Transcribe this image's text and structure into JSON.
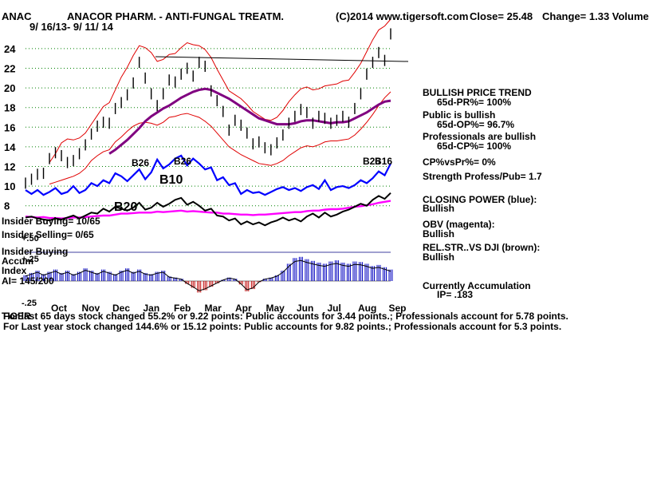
{
  "header": {
    "ticker": "ANAC",
    "company": "ANACOR PHARM. - ANTI-FUNGAL TREATM.",
    "copyright": "(C)2014 www.tigersoft.com",
    "close": "Close= 25.48",
    "change": "Change= 1.33 Volume",
    "date_range": "9/ 16/13- 9/ 11/ 14"
  },
  "side_panel": {
    "trend_title": "BULLISH PRICE TREND",
    "pr": "65d-PR%= 100%",
    "public_bullish": "Public is bullish",
    "op": "65d-OP%= 96.7%",
    "pros_bullish": "Professionals are bullish",
    "cp": "65d-CP%= 100%",
    "cpvspr": "CP%vsPr%= 0%",
    "strength": "Strength Profess/Pub= 1.7",
    "closing_power": "CLOSING POWER (blue):",
    "closing_power_state": "Bullish",
    "obv": "OBV (magenta):",
    "obv_state": "Bullish",
    "relstr": "REL.STR..VS DJI (brown):",
    "relstr_state": "Bullish",
    "accum": "Currently Accumulation",
    "ip": "IP= .183"
  },
  "insider": {
    "buying": "Insider Buying= 10/65",
    "selling": "Insider Selling= 0/65",
    "buying2": "Insider Buying"
  },
  "accum_panel": {
    "label1": "Accum",
    "label2": "Index",
    "ai": "AI= 145/200",
    "ticks": [
      "+.50",
      "+.25",
      "-.25"
    ]
  },
  "signals": [
    "B26",
    "B26",
    "B10",
    "B20",
    "B26",
    "B16"
  ],
  "footer": {
    "line1": "For last 65 days stock changed 55.2% or 9.22 points: Public accounts for 3.44 points.; Professionals account for 5.78 points.",
    "line2": "For Last year stock changed 144.6% or 15.12 points: Public accounts for 9.82 points.; Professionals account for 5.3 points.",
    "overlap": "TIGER"
  },
  "chart_data": {
    "type": "line",
    "title": "ANACOR PHARM. - ANTI-FUNGAL TREATM.",
    "x_tick_labels": [
      "Oct",
      "Nov",
      "Dec",
      "Jan",
      "Feb",
      "Mar",
      "Apr",
      "May",
      "Jun",
      "Jul",
      "Aug",
      "Sep"
    ],
    "y_ticks": [
      8,
      10,
      12,
      14,
      16,
      18,
      20,
      22,
      24
    ],
    "ylim": [
      7,
      26
    ],
    "grid": true,
    "series": [
      {
        "key": "price",
        "values": [
          10.3,
          10.7,
          11.2,
          11.3,
          12.8,
          13.4,
          13.1,
          12.4,
          12.6,
          13.3,
          14.2,
          15.3,
          16.1,
          16.5,
          16.4,
          17.9,
          18.5,
          19.3,
          20.5,
          22.6,
          21.0,
          19.4,
          18.2,
          19.4,
          20.8,
          20.6,
          21.4,
          22.0,
          21.2,
          22.6,
          22.2,
          19.7,
          18.7,
          17.6,
          15.7,
          16.7,
          16.2,
          15.4,
          14.3,
          14.5,
          13.9,
          13.7,
          14.4,
          15.2,
          16.4,
          17.1,
          17.8,
          17.5,
          16.4,
          17.1,
          16.9,
          16.4,
          16.7,
          17.1,
          16.5,
          17.9,
          19.4,
          21.4,
          22.6,
          23.6,
          22.8,
          25.5
        ]
      },
      {
        "key": "ma_purple",
        "values": [
          null,
          null,
          null,
          null,
          null,
          null,
          null,
          null,
          null,
          null,
          null,
          null,
          null,
          null,
          13.3,
          13.7,
          14.2,
          14.7,
          15.3,
          15.9,
          16.6,
          17.1,
          17.5,
          17.9,
          18.2,
          18.6,
          19.0,
          19.3,
          19.6,
          19.8,
          19.9,
          19.8,
          19.5,
          19.2,
          18.9,
          18.5,
          18.1,
          17.7,
          17.3,
          16.9,
          16.7,
          16.5,
          16.3,
          16.3,
          16.3,
          16.4,
          16.6,
          16.7,
          16.7,
          16.6,
          16.5,
          16.4,
          16.5,
          16.5,
          16.6,
          16.9,
          17.2,
          17.5,
          17.9,
          18.3,
          18.6,
          18.7
        ]
      },
      {
        "key": "band_upper",
        "values": [
          null,
          null,
          null,
          null,
          12.4,
          13.3,
          14.4,
          14.8,
          14.7,
          14.9,
          15.4,
          16.3,
          17.2,
          18.1,
          18.5,
          19.8,
          21.1,
          22.1,
          23.3,
          24.3,
          24.1,
          23.6,
          22.7,
          22.9,
          23.4,
          23.5,
          24.1,
          24.6,
          24.4,
          24.3,
          23.9,
          23.1,
          21.9,
          20.8,
          19.7,
          19.3,
          18.9,
          18.3,
          17.6,
          17.2,
          16.8,
          16.7,
          17.0,
          17.7,
          18.6,
          19.3,
          19.9,
          20.1,
          19.8,
          19.9,
          20.2,
          20.3,
          20.4,
          20.7,
          20.8,
          21.6,
          22.5,
          23.7,
          24.9,
          25.9,
          26.3,
          27.0
        ]
      },
      {
        "key": "band_lower",
        "values": [
          null,
          null,
          null,
          null,
          10.2,
          10.4,
          10.6,
          10.8,
          11.0,
          11.3,
          11.8,
          12.6,
          13.1,
          13.5,
          13.7,
          14.5,
          15.0,
          15.6,
          16.1,
          16.4,
          16.5,
          16.4,
          16.2,
          16.5,
          17.0,
          17.1,
          17.3,
          17.4,
          17.2,
          17.0,
          16.6,
          16.1,
          15.4,
          14.7,
          14.0,
          13.6,
          13.2,
          12.9,
          12.6,
          12.3,
          12.2,
          12.1,
          12.3,
          12.6,
          13.1,
          13.5,
          13.9,
          14.1,
          14.0,
          14.2,
          14.5,
          14.6,
          14.6,
          14.7,
          14.8,
          15.2,
          15.8,
          16.5,
          17.3,
          18.2,
          19.0,
          19.6
        ]
      },
      {
        "key": "closing_power",
        "values": [
          9.6,
          9.2,
          9.6,
          9.1,
          9.4,
          9.8,
          9.2,
          9.4,
          10.0,
          9.3,
          9.6,
          10.3,
          10.0,
          10.6,
          10.3,
          11.3,
          11.0,
          10.5,
          11.1,
          11.7,
          10.7,
          11.4,
          12.7,
          11.8,
          12.2,
          12.8,
          13.1,
          12.1,
          12.8,
          12.3,
          11.7,
          11.9,
          10.6,
          10.9,
          10.1,
          10.3,
          9.2,
          9.6,
          9.3,
          9.4,
          9.1,
          9.4,
          9.7,
          9.9,
          9.6,
          9.8,
          9.5,
          9.9,
          10.1,
          9.7,
          10.6,
          9.6,
          9.9,
          10.0,
          9.8,
          10.1,
          10.6,
          10.3,
          10.8,
          11.5,
          11.1,
          12.3
        ]
      },
      {
        "key": "obv",
        "values": [
          6.9,
          6.85,
          6.8,
          6.85,
          6.75,
          6.75,
          6.7,
          6.75,
          6.8,
          6.8,
          6.85,
          6.9,
          6.95,
          7.0,
          7.0,
          7.1,
          7.2,
          7.2,
          7.25,
          7.3,
          7.3,
          7.3,
          7.4,
          7.35,
          7.4,
          7.45,
          7.5,
          7.4,
          7.45,
          7.4,
          7.35,
          7.3,
          7.3,
          7.2,
          7.2,
          7.15,
          7.1,
          7.1,
          7.05,
          7.1,
          7.1,
          7.15,
          7.2,
          7.25,
          7.3,
          7.35,
          7.35,
          7.45,
          7.5,
          7.5,
          7.6,
          7.65,
          7.65,
          7.7,
          7.8,
          7.9,
          7.95,
          8.05,
          8.15,
          8.3,
          8.4,
          8.5
        ]
      },
      {
        "key": "relstr",
        "values": [
          6.8,
          6.9,
          6.7,
          6.6,
          6.5,
          6.7,
          6.6,
          6.8,
          7.0,
          6.7,
          7.0,
          7.3,
          7.2,
          7.7,
          7.4,
          7.9,
          7.7,
          7.5,
          7.8,
          8.3,
          7.6,
          7.8,
          8.3,
          7.9,
          8.2,
          8.6,
          8.8,
          8.1,
          8.4,
          8.0,
          7.5,
          7.7,
          7.0,
          6.9,
          6.5,
          6.7,
          6.1,
          6.4,
          6.1,
          6.3,
          6.0,
          6.3,
          6.5,
          6.8,
          6.5,
          6.7,
          6.4,
          6.9,
          7.2,
          6.8,
          7.3,
          6.9,
          7.1,
          7.4,
          7.6,
          7.9,
          8.2,
          8.0,
          8.6,
          9.0,
          8.7,
          9.3
        ]
      },
      {
        "key": "accum",
        "values": [
          0.1,
          0.14,
          0.18,
          0.12,
          0.16,
          0.2,
          0.14,
          0.18,
          0.12,
          0.16,
          0.22,
          0.18,
          0.14,
          0.2,
          0.16,
          0.12,
          0.18,
          0.22,
          0.16,
          0.2,
          0.14,
          0.12,
          0.16,
          0.18,
          0.08,
          0.06,
          0.04,
          -0.05,
          -0.12,
          -0.2,
          -0.16,
          -0.1,
          -0.04,
          0.02,
          0.06,
          0.04,
          -0.06,
          -0.18,
          -0.14,
          -0.02,
          0.04,
          0.06,
          0.1,
          0.18,
          0.3,
          0.4,
          0.42,
          0.38,
          0.35,
          0.32,
          0.3,
          0.34,
          0.36,
          0.32,
          0.3,
          0.34,
          0.33,
          0.3,
          0.26,
          0.28,
          0.24,
          0.2
        ]
      }
    ]
  },
  "colors": {
    "price": "#000000",
    "ma": "#800080",
    "band": "#e00000",
    "closing_power": "#0000ff",
    "obv": "#ff00ff",
    "relstr": "#000000",
    "grid": "#008000",
    "accum_pos": "#0000c0",
    "accum_neg": "#c00000",
    "accum_line": "#000000"
  }
}
